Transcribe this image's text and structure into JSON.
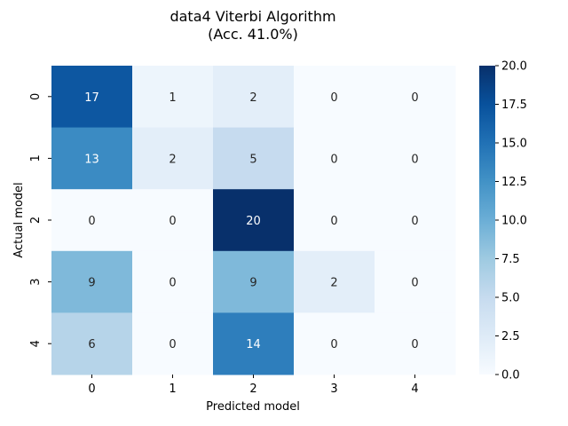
{
  "chart_data": {
    "type": "heatmap",
    "title_lines": [
      "data4 Viterbi Algorithm",
      "(Acc. 41.0%)"
    ],
    "xlabel": "Predicted model",
    "ylabel": "Actual model",
    "x_categories": [
      "0",
      "1",
      "2",
      "3",
      "4"
    ],
    "y_categories": [
      "0",
      "1",
      "2",
      "3",
      "4"
    ],
    "values": [
      [
        17,
        1,
        2,
        0,
        0
      ],
      [
        13,
        2,
        5,
        0,
        0
      ],
      [
        0,
        0,
        20,
        0,
        0
      ],
      [
        9,
        0,
        9,
        2,
        0
      ],
      [
        6,
        0,
        14,
        0,
        0
      ]
    ],
    "colormap": "Blues",
    "color_range": [
      0,
      20
    ],
    "colorbar_ticks": [
      "0.0",
      "2.5",
      "5.0",
      "7.5",
      "10.0",
      "12.5",
      "15.0",
      "17.5",
      "20.0"
    ],
    "colors": {
      "low": "#f7fbff",
      "high": "#08306b",
      "annotation_light": "#ffffff",
      "annotation_dark": "#262626"
    }
  }
}
